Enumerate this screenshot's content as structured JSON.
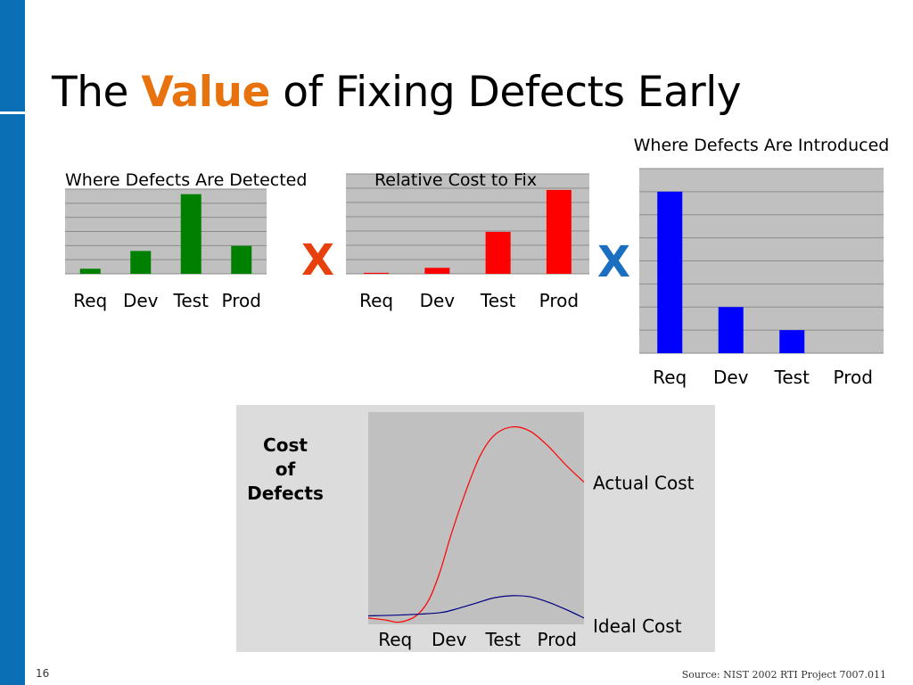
{
  "slide": {
    "title_before": "The",
    "title_accent": "Value",
    "title_after": "of Fixing Defects Early",
    "operator_1": "X",
    "operator_2": "X",
    "cost_label": [
      "Cost",
      "of",
      "Defects"
    ],
    "page_number": "16",
    "source": "Source: NIST 2002 RTI Project 7007.011"
  },
  "colors": {
    "sidebar": "#0a6fb5",
    "accent": "#e8730e",
    "operator_1": "#e8400c",
    "operator_2": "#1a6fc0",
    "green": "#008000",
    "red": "#ff0000",
    "blue": "#0000ff",
    "plot_bg": "#c0c0c0"
  },
  "chart_data": [
    {
      "id": "detected",
      "type": "bar",
      "title": "Where Defects Are Detected",
      "categories": [
        "Req",
        "Dev",
        "Test",
        "Prod"
      ],
      "values": [
        6,
        27,
        94,
        33
      ],
      "ylim": [
        0,
        100
      ],
      "grid": true,
      "color": "#008000"
    },
    {
      "id": "cost",
      "type": "bar",
      "title": "Relative Cost to Fix",
      "categories": [
        "Req",
        "Dev",
        "Test",
        "Prod"
      ],
      "values": [
        1,
        6,
        42,
        84
      ],
      "ylim": [
        0,
        100
      ],
      "grid": true,
      "color": "#ff0000"
    },
    {
      "id": "introduced",
      "type": "bar",
      "title": "Where Defects Are Introduced",
      "categories": [
        "Req",
        "Dev",
        "Test",
        "Prod"
      ],
      "values": [
        70,
        20,
        10,
        0
      ],
      "ylim": [
        0,
        80
      ],
      "grid": true,
      "color": "#0000ff"
    },
    {
      "id": "cost-of-defects",
      "type": "line",
      "categories": [
        "Req",
        "Dev",
        "Test",
        "Prod"
      ],
      "ylim": [
        0,
        100
      ],
      "grid": false,
      "series": [
        {
          "name": "Actual Cost",
          "color": "#ff0000",
          "x": [
            0.0,
            0.25,
            0.4,
            0.55,
            0.7,
            0.85,
            1.0,
            1.15,
            1.35,
            1.55,
            1.75,
            2.0,
            2.25,
            2.5,
            2.75,
            3.0
          ],
          "y": [
            3,
            2,
            1,
            2,
            5,
            12,
            25,
            42,
            62,
            79,
            89,
            93,
            91,
            84,
            75,
            67
          ]
        },
        {
          "name": "Ideal Cost",
          "color": "#000080",
          "x": [
            0.0,
            0.5,
            1.0,
            1.25,
            1.5,
            1.75,
            2.0,
            2.25,
            2.5,
            2.75,
            3.0
          ],
          "y": [
            4,
            4.5,
            5.5,
            7.5,
            10,
            12.5,
            13.5,
            13,
            10.5,
            7,
            3
          ]
        }
      ]
    }
  ]
}
